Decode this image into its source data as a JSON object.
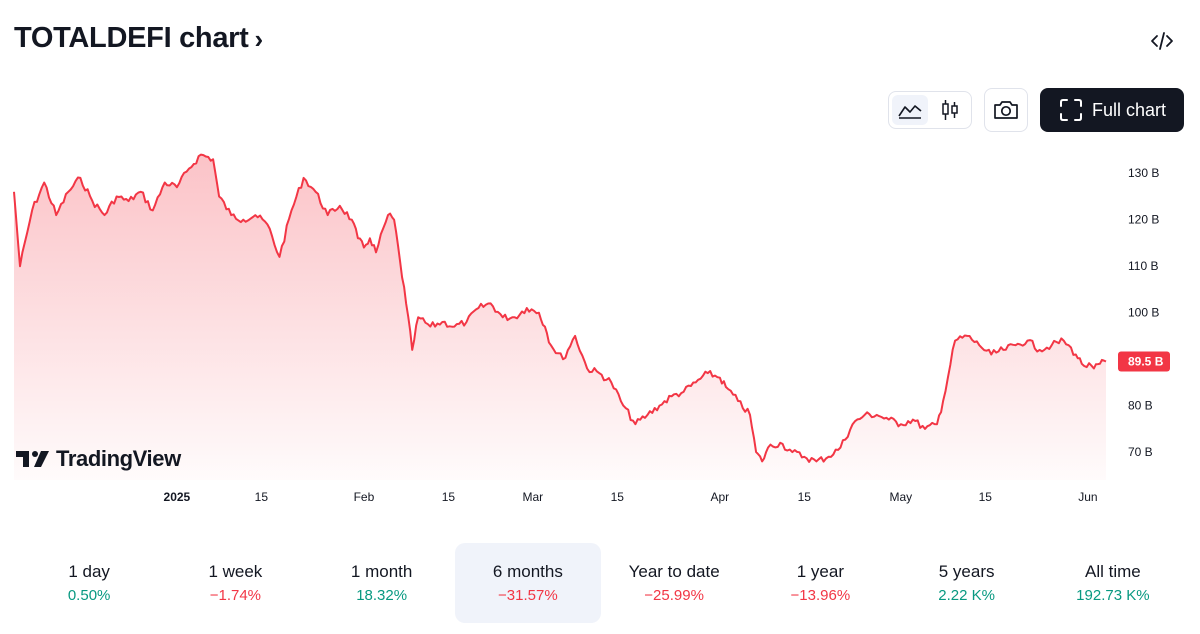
{
  "header": {
    "title": "TOTALDEFI chart",
    "chevron": "›",
    "embed_icon": "code-icon"
  },
  "toolbar": {
    "line_icon": "area-chart-icon",
    "candle_icon": "candlestick-icon",
    "snapshot_icon": "camera-icon",
    "full_chart_label": "Full chart",
    "full_chart_icon": "fullscreen-icon"
  },
  "branding": {
    "logo_text": "TradingView"
  },
  "colors": {
    "line": "#f23645",
    "positive": "#089981",
    "negative": "#f23645",
    "dark": "#131722"
  },
  "chart_data": {
    "type": "area",
    "y_unit": "B",
    "ylim": [
      64,
      135
    ],
    "y_ticks": [
      {
        "value": 130,
        "label": "130 B"
      },
      {
        "value": 120,
        "label": "120 B"
      },
      {
        "value": 110,
        "label": "110 B"
      },
      {
        "value": 100,
        "label": "100 B"
      },
      {
        "value": 80,
        "label": "80 B"
      },
      {
        "value": 70,
        "label": "70 B"
      }
    ],
    "x_range": [
      "2024-12-05",
      "2025-06-05"
    ],
    "x_ticks": [
      {
        "date": "2025-01-01",
        "label": "2025",
        "bold": true
      },
      {
        "date": "2025-01-15",
        "label": "15"
      },
      {
        "date": "2025-02-01",
        "label": "Feb"
      },
      {
        "date": "2025-02-15",
        "label": "15"
      },
      {
        "date": "2025-03-01",
        "label": "Mar"
      },
      {
        "date": "2025-03-15",
        "label": "15"
      },
      {
        "date": "2025-04-01",
        "label": "Apr"
      },
      {
        "date": "2025-04-15",
        "label": "15"
      },
      {
        "date": "2025-05-01",
        "label": "May"
      },
      {
        "date": "2025-05-15",
        "label": "15"
      },
      {
        "date": "2025-06-01",
        "label": "Jun"
      }
    ],
    "last_value": 89.5,
    "last_label": "89.5 B",
    "points": [
      [
        "2024-12-05",
        126
      ],
      [
        "2024-12-06",
        110
      ],
      [
        "2024-12-08",
        122
      ],
      [
        "2024-12-10",
        128
      ],
      [
        "2024-12-12",
        121
      ],
      [
        "2024-12-14",
        126
      ],
      [
        "2024-12-16",
        129
      ],
      [
        "2024-12-18",
        124
      ],
      [
        "2024-12-20",
        121
      ],
      [
        "2024-12-22",
        125
      ],
      [
        "2024-12-24",
        124
      ],
      [
        "2024-12-26",
        126
      ],
      [
        "2024-12-28",
        122
      ],
      [
        "2024-12-30",
        128
      ],
      [
        "2025-01-01",
        127
      ],
      [
        "2025-01-03",
        131
      ],
      [
        "2025-01-05",
        134
      ],
      [
        "2025-01-07",
        133
      ],
      [
        "2025-01-08",
        125
      ],
      [
        "2025-01-10",
        121
      ],
      [
        "2025-01-12",
        120
      ],
      [
        "2025-01-14",
        121
      ],
      [
        "2025-01-16",
        119
      ],
      [
        "2025-01-18",
        112
      ],
      [
        "2025-01-20",
        122
      ],
      [
        "2025-01-22",
        129
      ],
      [
        "2025-01-24",
        126
      ],
      [
        "2025-01-26",
        121
      ],
      [
        "2025-01-28",
        123
      ],
      [
        "2025-01-30",
        120
      ],
      [
        "2025-01-31",
        116
      ],
      [
        "2025-02-01",
        114
      ],
      [
        "2025-02-02",
        116
      ],
      [
        "2025-02-03",
        113
      ],
      [
        "2025-02-05",
        121
      ],
      [
        "2025-02-06",
        120
      ],
      [
        "2025-02-07",
        111
      ],
      [
        "2025-02-08",
        102
      ],
      [
        "2025-02-09",
        92
      ],
      [
        "2025-02-10",
        99
      ],
      [
        "2025-02-12",
        97
      ],
      [
        "2025-02-14",
        98
      ],
      [
        "2025-02-16",
        97
      ],
      [
        "2025-02-18",
        98
      ],
      [
        "2025-02-20",
        101
      ],
      [
        "2025-02-22",
        102
      ],
      [
        "2025-02-24",
        99
      ],
      [
        "2025-02-26",
        99
      ],
      [
        "2025-02-28",
        101
      ],
      [
        "2025-03-02",
        100
      ],
      [
        "2025-03-03",
        97
      ],
      [
        "2025-03-04",
        93
      ],
      [
        "2025-03-06",
        90
      ],
      [
        "2025-03-08",
        95
      ],
      [
        "2025-03-10",
        88
      ],
      [
        "2025-03-12",
        87
      ],
      [
        "2025-03-14",
        85
      ],
      [
        "2025-03-16",
        80
      ],
      [
        "2025-03-18",
        76
      ],
      [
        "2025-03-20",
        78
      ],
      [
        "2025-03-22",
        80
      ],
      [
        "2025-03-24",
        82
      ],
      [
        "2025-03-26",
        83
      ],
      [
        "2025-03-28",
        85
      ],
      [
        "2025-03-30",
        87
      ],
      [
        "2025-04-01",
        86
      ],
      [
        "2025-04-02",
        84
      ],
      [
        "2025-04-04",
        81
      ],
      [
        "2025-04-06",
        78
      ],
      [
        "2025-04-07",
        70
      ],
      [
        "2025-04-08",
        68
      ],
      [
        "2025-04-09",
        71
      ],
      [
        "2025-04-11",
        72
      ],
      [
        "2025-04-13",
        70
      ],
      [
        "2025-04-15",
        69
      ],
      [
        "2025-04-17",
        68
      ],
      [
        "2025-04-19",
        69
      ],
      [
        "2025-04-21",
        71
      ],
      [
        "2025-04-23",
        76
      ],
      [
        "2025-04-25",
        78
      ],
      [
        "2025-04-27",
        78
      ],
      [
        "2025-04-29",
        77
      ],
      [
        "2025-05-01",
        76
      ],
      [
        "2025-05-03",
        77
      ],
      [
        "2025-05-05",
        75
      ],
      [
        "2025-05-07",
        76
      ],
      [
        "2025-05-08",
        81
      ],
      [
        "2025-05-10",
        94
      ],
      [
        "2025-05-12",
        95
      ],
      [
        "2025-05-14",
        93
      ],
      [
        "2025-05-16",
        91
      ],
      [
        "2025-05-18",
        92
      ],
      [
        "2025-05-20",
        93
      ],
      [
        "2025-05-22",
        94
      ],
      [
        "2025-05-24",
        92
      ],
      [
        "2025-05-26",
        93
      ],
      [
        "2025-05-28",
        94
      ],
      [
        "2025-05-30",
        91
      ],
      [
        "2025-05-31",
        89
      ],
      [
        "2025-06-02",
        88
      ],
      [
        "2025-06-03",
        89
      ],
      [
        "2025-06-04",
        89.5
      ]
    ]
  },
  "periods": [
    {
      "label": "1 day",
      "value": "0.50%",
      "sign": "pos"
    },
    {
      "label": "1 week",
      "value": "−1.74%",
      "sign": "neg"
    },
    {
      "label": "1 month",
      "value": "18.32%",
      "sign": "pos"
    },
    {
      "label": "6 months",
      "value": "−31.57%",
      "sign": "neg",
      "active": true
    },
    {
      "label": "Year to date",
      "value": "−25.99%",
      "sign": "neg"
    },
    {
      "label": "1 year",
      "value": "−13.96%",
      "sign": "neg"
    },
    {
      "label": "5 years",
      "value": "2.22 K%",
      "sign": "pos"
    },
    {
      "label": "All time",
      "value": "192.73 K%",
      "sign": "pos"
    }
  ]
}
